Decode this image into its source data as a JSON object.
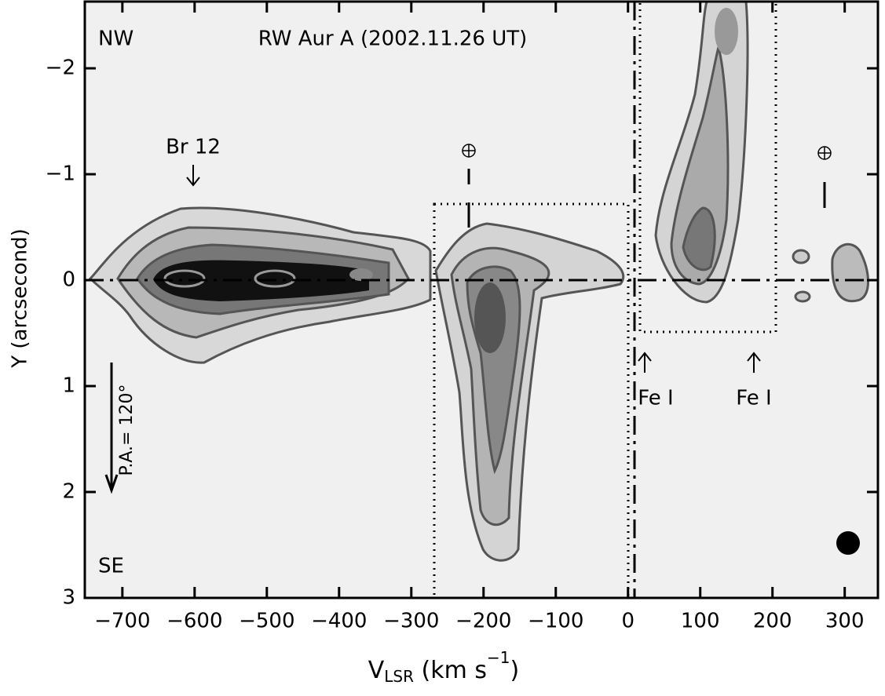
{
  "chart_data": {
    "type": "position-velocity",
    "title": "RW Aur A (2002.11.26 UT)",
    "xlabel": [
      "V",
      "LSR",
      " (km s",
      "−1",
      ")"
    ],
    "ylabel": "Y (arcsecond)",
    "annotations": {
      "nw": "NW",
      "se": "SE",
      "br": "Br 12",
      "fe1": "Fe I",
      "fe2": "Fe I",
      "pa": "P.A.= 120°"
    },
    "xlim": [
      -752,
      346
    ],
    "ylim": [
      3,
      -2.63
    ],
    "xticks": [
      {
        "value": -700,
        "label": "−700"
      },
      {
        "value": -600,
        "label": "−600"
      },
      {
        "value": -500,
        "label": "−500"
      },
      {
        "value": -400,
        "label": "−400"
      },
      {
        "value": -300,
        "label": "−300"
      },
      {
        "value": -200,
        "label": "−200"
      },
      {
        "value": -100,
        "label": "−100"
      },
      0,
      100,
      200,
      300
    ],
    "yticks": [
      {
        "value": -2,
        "label": "−2"
      },
      {
        "value": -1,
        "label": "−1"
      },
      0,
      1,
      2,
      3
    ]
  }
}
